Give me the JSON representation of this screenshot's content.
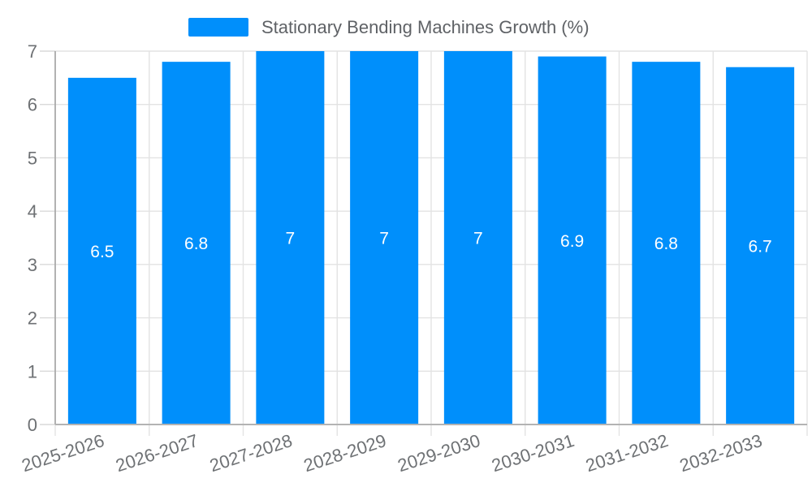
{
  "chart_data": {
    "type": "bar",
    "title": "Stationary Bending Machines Growth (%)",
    "categories": [
      "2025-2026",
      "2026-2027",
      "2027-2028",
      "2028-2029",
      "2029-2030",
      "2030-2031",
      "2031-2032",
      "2032-2033"
    ],
    "series": [
      {
        "name": "Stationary Bending Machines Growth (%)",
        "values": [
          6.5,
          6.8,
          7,
          7,
          7,
          6.9,
          6.8,
          6.7
        ],
        "labels": [
          "6.5",
          "6.8",
          "7",
          "7",
          "7",
          "6.9",
          "6.8",
          "6.7"
        ]
      }
    ],
    "xlabel": "",
    "ylabel": "",
    "ylim": [
      0,
      7
    ],
    "yticks": [
      0,
      1,
      2,
      3,
      4,
      5,
      6,
      7
    ],
    "grid": "on",
    "legend_position": "top",
    "x_label_rotation_deg": -18,
    "colors": {
      "bar": "#008FFB",
      "grid": "#e3e3e3",
      "tick": "#d9d9d9",
      "y_axis_line": "#a2a2a2",
      "x_axis_line": "#b3b3b3",
      "axis_label": "#6e7174",
      "legend_text": "#5f6266",
      "data_label": "#ffffff",
      "background": "#ffffff"
    }
  }
}
